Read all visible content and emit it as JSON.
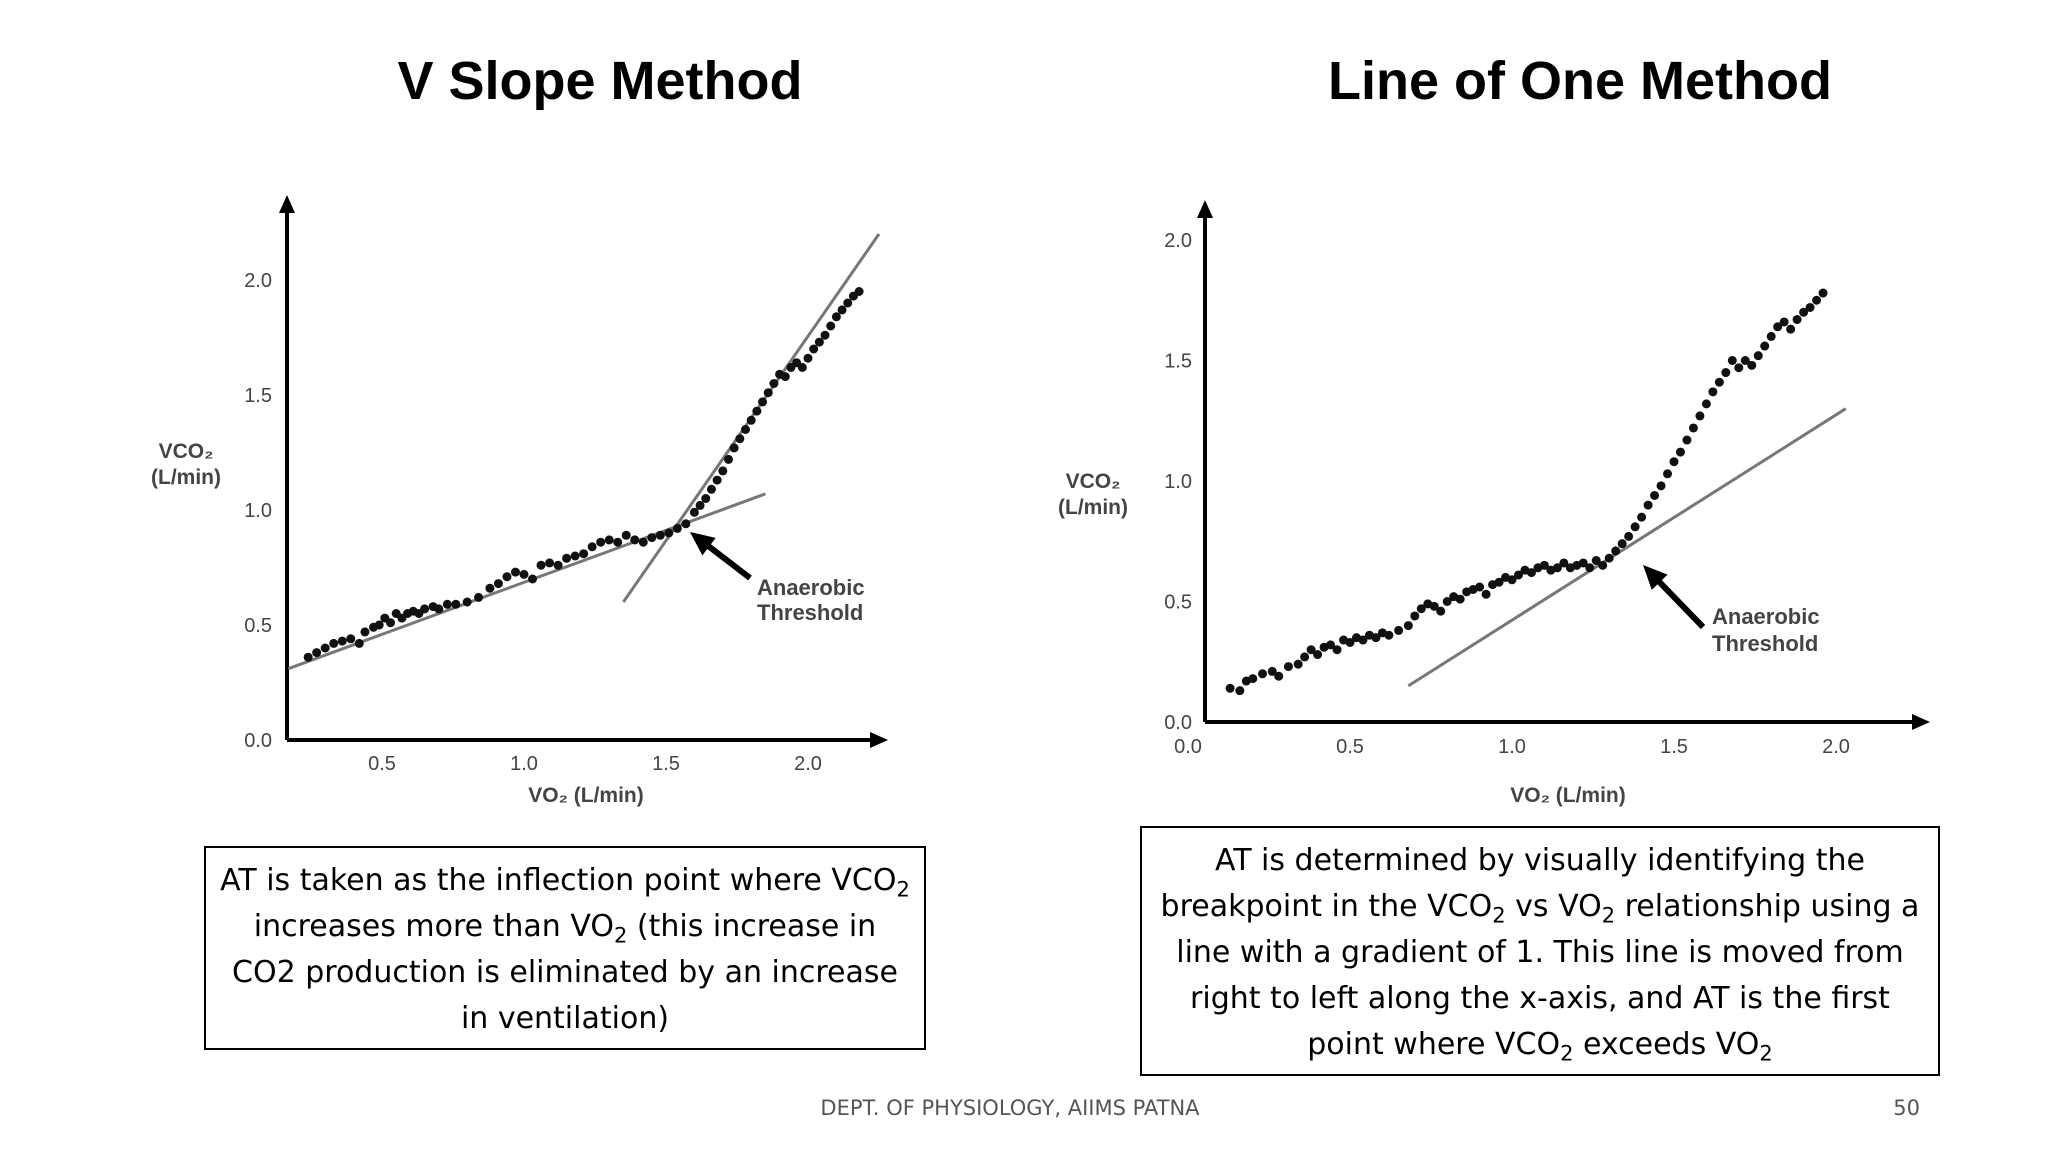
{
  "titles": {
    "left": "V Slope Method",
    "right": "Line of One Method"
  },
  "descriptions": {
    "left": [
      "AT is taken as the inflection point where ",
      "VCO",
      "2",
      " increases more than VO",
      "2",
      " (this increase in CO2 production is eliminated by an increase in ventilation)"
    ],
    "right": [
      "AT is determined by visually identifying the breakpoint in the VCO",
      "2",
      " vs VO",
      "2",
      " relationship using a line with a gradient of 1. This line is moved from right to left along the x-axis, and AT is the first point where VCO",
      "2",
      " exceeds VO",
      "2",
      ""
    ]
  },
  "footer": {
    "dept": "DEPT. OF PHYSIOLOGY, AIIMS PATNA",
    "page": "50"
  },
  "chart_data": [
    {
      "type": "scatter",
      "title": "V Slope Method",
      "xlabel": "VO₂ (L/min)",
      "ylabel": "VCO₂ (L/min)",
      "ylabel_lines": [
        "VCO₂",
        "(L/min)"
      ],
      "xticks": [
        "0.5",
        "1.0",
        "1.5",
        "2.0"
      ],
      "yticks": [
        "0.0",
        "0.5",
        "1.0",
        "1.5",
        "2.0"
      ],
      "xlim": [
        0.15,
        2.45
      ],
      "ylim": [
        0.0,
        2.35
      ],
      "annotation": [
        "Anaerobic",
        "Threshold"
      ],
      "threshold": {
        "x": 1.57,
        "y": 0.93
      },
      "lines": [
        {
          "x": [
            0.17,
            1.85
          ],
          "y": [
            0.31,
            1.07
          ]
        },
        {
          "x": [
            1.35,
            2.25
          ],
          "y": [
            0.6,
            2.2
          ]
        }
      ],
      "series": [
        {
          "points": [
            [
              0.24,
              0.36
            ],
            [
              0.27,
              0.38
            ],
            [
              0.3,
              0.4
            ],
            [
              0.33,
              0.42
            ],
            [
              0.36,
              0.43
            ],
            [
              0.39,
              0.44
            ],
            [
              0.42,
              0.42
            ],
            [
              0.44,
              0.47
            ],
            [
              0.47,
              0.49
            ],
            [
              0.49,
              0.5
            ],
            [
              0.51,
              0.53
            ],
            [
              0.53,
              0.51
            ],
            [
              0.55,
              0.55
            ],
            [
              0.57,
              0.53
            ],
            [
              0.59,
              0.55
            ],
            [
              0.61,
              0.56
            ],
            [
              0.63,
              0.55
            ],
            [
              0.65,
              0.57
            ],
            [
              0.68,
              0.58
            ],
            [
              0.7,
              0.57
            ],
            [
              0.73,
              0.59
            ],
            [
              0.76,
              0.59
            ],
            [
              0.8,
              0.6
            ],
            [
              0.84,
              0.62
            ],
            [
              0.88,
              0.66
            ],
            [
              0.91,
              0.68
            ],
            [
              0.94,
              0.71
            ],
            [
              0.97,
              0.73
            ],
            [
              1.0,
              0.72
            ],
            [
              1.03,
              0.7
            ],
            [
              1.06,
              0.76
            ],
            [
              1.09,
              0.77
            ],
            [
              1.12,
              0.76
            ],
            [
              1.15,
              0.79
            ],
            [
              1.18,
              0.8
            ],
            [
              1.21,
              0.81
            ],
            [
              1.24,
              0.84
            ],
            [
              1.27,
              0.86
            ],
            [
              1.3,
              0.87
            ],
            [
              1.33,
              0.86
            ],
            [
              1.36,
              0.89
            ],
            [
              1.39,
              0.87
            ],
            [
              1.42,
              0.86
            ],
            [
              1.45,
              0.88
            ],
            [
              1.48,
              0.89
            ],
            [
              1.51,
              0.9
            ],
            [
              1.54,
              0.92
            ],
            [
              1.57,
              0.94
            ],
            [
              1.6,
              0.99
            ],
            [
              1.62,
              1.02
            ],
            [
              1.64,
              1.05
            ],
            [
              1.66,
              1.09
            ],
            [
              1.68,
              1.13
            ],
            [
              1.7,
              1.17
            ],
            [
              1.72,
              1.22
            ],
            [
              1.74,
              1.27
            ],
            [
              1.76,
              1.31
            ],
            [
              1.78,
              1.35
            ],
            [
              1.8,
              1.39
            ],
            [
              1.82,
              1.43
            ],
            [
              1.84,
              1.47
            ],
            [
              1.86,
              1.51
            ],
            [
              1.88,
              1.55
            ],
            [
              1.9,
              1.59
            ],
            [
              1.92,
              1.58
            ],
            [
              1.94,
              1.62
            ],
            [
              1.96,
              1.64
            ],
            [
              1.98,
              1.62
            ],
            [
              2.0,
              1.66
            ],
            [
              2.02,
              1.7
            ],
            [
              2.04,
              1.73
            ],
            [
              2.06,
              1.76
            ],
            [
              2.08,
              1.8
            ],
            [
              2.1,
              1.84
            ],
            [
              2.12,
              1.87
            ],
            [
              2.14,
              1.9
            ],
            [
              2.16,
              1.93
            ],
            [
              2.18,
              1.95
            ]
          ]
        }
      ]
    },
    {
      "type": "scatter",
      "title": "Line of One Method",
      "xlabel": "VO₂ (L/min)",
      "ylabel": "VCO₂ (L/min)",
      "ylabel_lines": [
        "VCO₂",
        "(L/min)"
      ],
      "xticks": [
        "0.0",
        "0.5",
        "1.0",
        "1.5",
        "2.0"
      ],
      "yticks": [
        "0.0",
        "0.5",
        "1.0",
        "1.5",
        "2.0"
      ],
      "xlim": [
        0.0,
        2.25
      ],
      "ylim": [
        0.0,
        2.1
      ],
      "annotation": [
        "Anaerobic",
        "Threshold"
      ],
      "threshold": {
        "x": 1.37,
        "y": 0.68
      },
      "lines": [
        {
          "x": [
            0.68,
            2.03
          ],
          "y": [
            0.15,
            1.3
          ]
        }
      ],
      "series": [
        {
          "points": [
            [
              0.13,
              0.14
            ],
            [
              0.16,
              0.13
            ],
            [
              0.18,
              0.17
            ],
            [
              0.2,
              0.18
            ],
            [
              0.23,
              0.2
            ],
            [
              0.26,
              0.21
            ],
            [
              0.28,
              0.19
            ],
            [
              0.31,
              0.23
            ],
            [
              0.34,
              0.24
            ],
            [
              0.36,
              0.27
            ],
            [
              0.38,
              0.3
            ],
            [
              0.4,
              0.28
            ],
            [
              0.42,
              0.31
            ],
            [
              0.44,
              0.32
            ],
            [
              0.46,
              0.3
            ],
            [
              0.48,
              0.34
            ],
            [
              0.5,
              0.33
            ],
            [
              0.52,
              0.35
            ],
            [
              0.54,
              0.34
            ],
            [
              0.56,
              0.36
            ],
            [
              0.58,
              0.35
            ],
            [
              0.6,
              0.37
            ],
            [
              0.62,
              0.36
            ],
            [
              0.65,
              0.38
            ],
            [
              0.68,
              0.4
            ],
            [
              0.7,
              0.44
            ],
            [
              0.72,
              0.47
            ],
            [
              0.74,
              0.49
            ],
            [
              0.76,
              0.48
            ],
            [
              0.78,
              0.46
            ],
            [
              0.8,
              0.5
            ],
            [
              0.82,
              0.52
            ],
            [
              0.84,
              0.51
            ],
            [
              0.86,
              0.54
            ],
            [
              0.88,
              0.55
            ],
            [
              0.9,
              0.56
            ],
            [
              0.92,
              0.53
            ],
            [
              0.94,
              0.57
            ],
            [
              0.96,
              0.58
            ],
            [
              0.98,
              0.6
            ],
            [
              1.0,
              0.59
            ],
            [
              1.02,
              0.61
            ],
            [
              1.04,
              0.63
            ],
            [
              1.06,
              0.62
            ],
            [
              1.08,
              0.64
            ],
            [
              1.1,
              0.65
            ],
            [
              1.12,
              0.63
            ],
            [
              1.14,
              0.64
            ],
            [
              1.16,
              0.66
            ],
            [
              1.18,
              0.64
            ],
            [
              1.2,
              0.65
            ],
            [
              1.22,
              0.66
            ],
            [
              1.24,
              0.64
            ],
            [
              1.26,
              0.67
            ],
            [
              1.28,
              0.65
            ],
            [
              1.3,
              0.68
            ],
            [
              1.32,
              0.71
            ],
            [
              1.34,
              0.74
            ],
            [
              1.36,
              0.77
            ],
            [
              1.38,
              0.81
            ],
            [
              1.4,
              0.85
            ],
            [
              1.42,
              0.9
            ],
            [
              1.44,
              0.94
            ],
            [
              1.46,
              0.98
            ],
            [
              1.48,
              1.03
            ],
            [
              1.5,
              1.08
            ],
            [
              1.52,
              1.12
            ],
            [
              1.54,
              1.17
            ],
            [
              1.56,
              1.22
            ],
            [
              1.58,
              1.27
            ],
            [
              1.6,
              1.32
            ],
            [
              1.62,
              1.37
            ],
            [
              1.64,
              1.41
            ],
            [
              1.66,
              1.45
            ],
            [
              1.68,
              1.5
            ],
            [
              1.7,
              1.47
            ],
            [
              1.72,
              1.5
            ],
            [
              1.74,
              1.48
            ],
            [
              1.76,
              1.52
            ],
            [
              1.78,
              1.56
            ],
            [
              1.8,
              1.6
            ],
            [
              1.82,
              1.64
            ],
            [
              1.84,
              1.66
            ],
            [
              1.86,
              1.63
            ],
            [
              1.88,
              1.67
            ],
            [
              1.9,
              1.7
            ],
            [
              1.92,
              1.72
            ],
            [
              1.94,
              1.75
            ],
            [
              1.96,
              1.78
            ]
          ]
        }
      ]
    }
  ]
}
